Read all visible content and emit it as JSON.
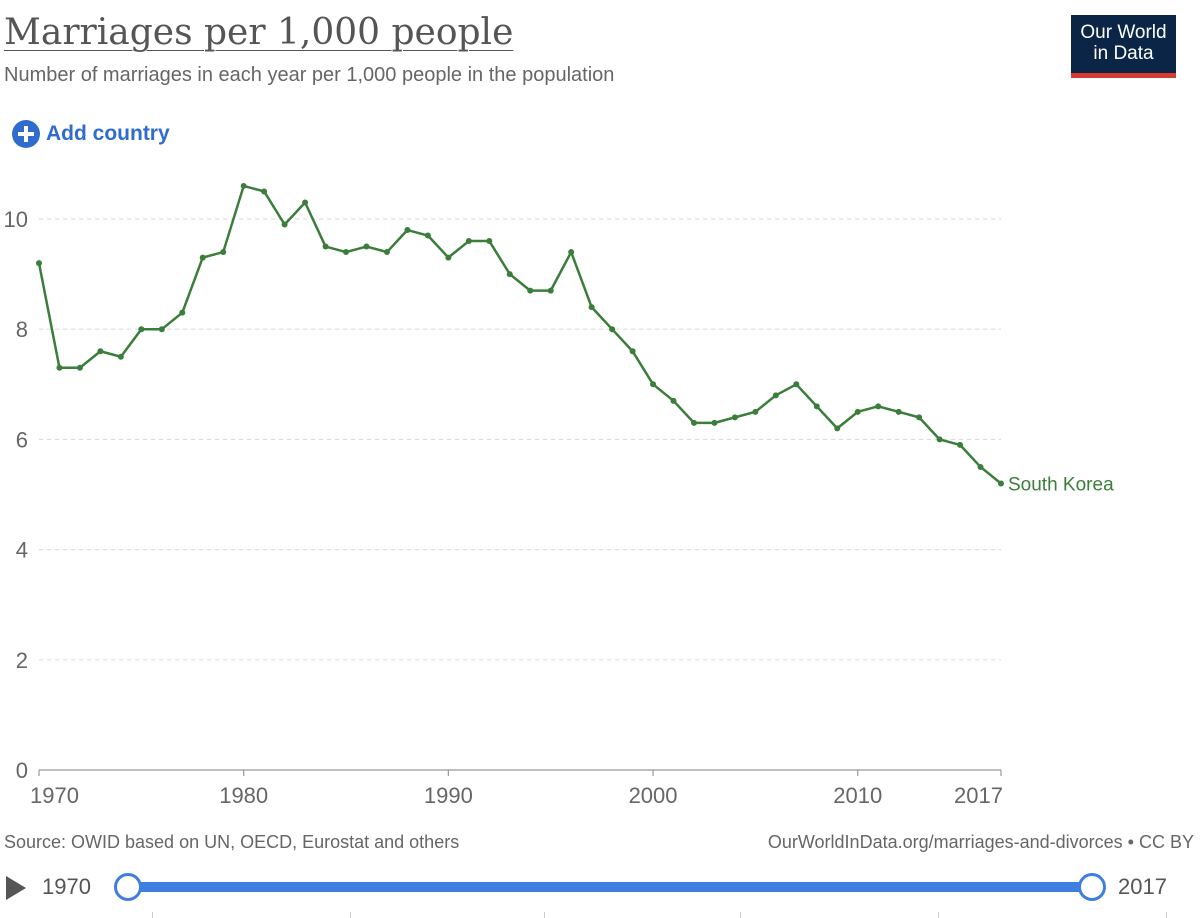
{
  "header": {
    "title": "Marriages per 1,000 people",
    "subtitle": "Number of marriages in each year per 1,000 people in the population",
    "logo_line1": "Our World",
    "logo_line2": "in Data"
  },
  "controls": {
    "add_country_label": "Add country"
  },
  "colors": {
    "series": "#3b7d3a",
    "accent": "#2f6cce",
    "slider": "#3d7ee0",
    "logo_bg": "#0b2547",
    "logo_bar": "#d73b34"
  },
  "chart_data": {
    "type": "line",
    "title": "Marriages per 1,000 people",
    "xlabel": "",
    "ylabel": "",
    "xlim": [
      1970,
      2017
    ],
    "ylim": [
      0,
      10.5
    ],
    "yticks": [
      0,
      2,
      4,
      6,
      8,
      10
    ],
    "xticks": [
      1970,
      1980,
      1990,
      2000,
      2010,
      2017
    ],
    "grid": "horizontal dashed",
    "series": [
      {
        "name": "South Korea",
        "x": [
          1970,
          1971,
          1972,
          1973,
          1974,
          1975,
          1976,
          1977,
          1978,
          1979,
          1980,
          1981,
          1982,
          1983,
          1984,
          1985,
          1986,
          1987,
          1988,
          1989,
          1990,
          1991,
          1992,
          1993,
          1994,
          1995,
          1996,
          1997,
          1998,
          1999,
          2000,
          2001,
          2002,
          2003,
          2004,
          2005,
          2006,
          2007,
          2008,
          2009,
          2010,
          2011,
          2012,
          2013,
          2014,
          2015,
          2016,
          2017
        ],
        "values": [
          9.2,
          7.3,
          7.3,
          7.6,
          7.5,
          8.0,
          8.0,
          8.3,
          9.3,
          9.4,
          10.6,
          10.5,
          9.9,
          10.3,
          9.5,
          9.4,
          9.5,
          9.4,
          9.8,
          9.7,
          9.3,
          9.6,
          9.6,
          9.0,
          8.7,
          8.7,
          9.4,
          8.4,
          8.0,
          7.6,
          7.0,
          6.7,
          6.3,
          6.3,
          6.4,
          6.5,
          6.8,
          7.0,
          6.6,
          6.2,
          6.5,
          6.6,
          6.5,
          6.4,
          6.0,
          5.9,
          5.5,
          5.2
        ]
      }
    ]
  },
  "footer": {
    "source": "Source: OWID based on UN, OECD, Eurostat and others",
    "link": "OurWorldInData.org/marriages-and-divorces • CC BY"
  },
  "timeline": {
    "start": "1970",
    "end": "2017"
  }
}
